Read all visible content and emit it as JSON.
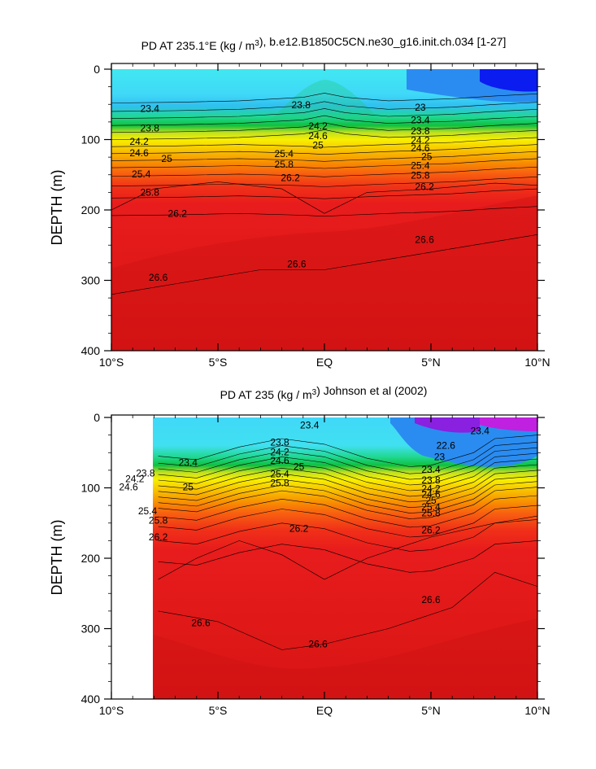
{
  "chart_data": [
    {
      "type": "contour",
      "title": "PD AT 235.1°E (kg / m³), b.e12.B1850C5CN.ne30_g16.init.ch.034 [1-27]",
      "ylabel": "DEPTH (m)",
      "x_ticks": [
        "10°S",
        "5°S",
        "EQ",
        "5°N",
        "10°N"
      ],
      "y_ticks": [
        "0",
        "100",
        "200",
        "300",
        "400"
      ],
      "xlim": [
        -10,
        10
      ],
      "ylim": [
        400,
        0
      ],
      "contour_labels": [
        {
          "x": -8.2,
          "y": 57,
          "v": "23.4"
        },
        {
          "x": -1.1,
          "y": 52,
          "v": "23.8"
        },
        {
          "x": 4.5,
          "y": 55,
          "v": "23"
        },
        {
          "x": -8.2,
          "y": 85,
          "v": "23.8"
        },
        {
          "x": 4.5,
          "y": 73,
          "v": "23.4"
        },
        {
          "x": -0.3,
          "y": 82,
          "v": "24.2"
        },
        {
          "x": 4.5,
          "y": 89,
          "v": "23.8"
        },
        {
          "x": -8.7,
          "y": 104,
          "v": "24.2"
        },
        {
          "x": -0.3,
          "y": 96,
          "v": "24.6"
        },
        {
          "x": 4.5,
          "y": 102,
          "v": "24.2"
        },
        {
          "x": -8.7,
          "y": 120,
          "v": "24.6"
        },
        {
          "x": -0.3,
          "y": 109,
          "v": "25"
        },
        {
          "x": 4.5,
          "y": 113,
          "v": "24.6"
        },
        {
          "x": -7.4,
          "y": 128,
          "v": "25"
        },
        {
          "x": -1.9,
          "y": 121,
          "v": "25.4"
        },
        {
          "x": 4.8,
          "y": 125,
          "v": "25"
        },
        {
          "x": -1.9,
          "y": 136,
          "v": "25.8"
        },
        {
          "x": 4.5,
          "y": 138,
          "v": "25.4"
        },
        {
          "x": -8.6,
          "y": 150,
          "v": "25.4"
        },
        {
          "x": 4.5,
          "y": 152,
          "v": "25.8"
        },
        {
          "x": -1.6,
          "y": 155,
          "v": "26.2"
        },
        {
          "x": 4.7,
          "y": 168,
          "v": "26.2"
        },
        {
          "x": -8.2,
          "y": 176,
          "v": "25.8"
        },
        {
          "x": -6.9,
          "y": 206,
          "v": "26.2"
        },
        {
          "x": 4.7,
          "y": 243,
          "v": "26.6"
        },
        {
          "x": -1.3,
          "y": 278,
          "v": "26.6"
        },
        {
          "x": -7.8,
          "y": 297,
          "v": "26.6"
        }
      ]
    },
    {
      "type": "contour",
      "title": "PD AT 235 (kg / m³) Johnson et al (2002)",
      "ylabel": "DEPTH (m)",
      "x_ticks": [
        "10°S",
        "5°S",
        "EQ",
        "5°N",
        "10°N"
      ],
      "y_ticks": [
        "0",
        "100",
        "200",
        "300",
        "400"
      ],
      "xlim": [
        -10,
        10
      ],
      "ylim": [
        400,
        0
      ],
      "contour_labels": [
        {
          "x": -0.7,
          "y": 12,
          "v": "23.4"
        },
        {
          "x": -2.1,
          "y": 36,
          "v": "23.8"
        },
        {
          "x": 7.3,
          "y": 20,
          "v": "23.4"
        },
        {
          "x": 5.7,
          "y": 41,
          "v": "22.6"
        },
        {
          "x": -2.1,
          "y": 50,
          "v": "24.2"
        },
        {
          "x": 5.4,
          "y": 57,
          "v": "23"
        },
        {
          "x": -6.4,
          "y": 65,
          "v": "23.4"
        },
        {
          "x": -2.1,
          "y": 62,
          "v": "24.6"
        },
        {
          "x": -1.2,
          "y": 71,
          "v": "25"
        },
        {
          "x": -8.4,
          "y": 80,
          "v": "23.8"
        },
        {
          "x": -2.1,
          "y": 81,
          "v": "25.4"
        },
        {
          "x": 5.0,
          "y": 75,
          "v": "23.4"
        },
        {
          "x": -8.9,
          "y": 88,
          "v": "24.2"
        },
        {
          "x": -2.1,
          "y": 94,
          "v": "25.8"
        },
        {
          "x": 5.0,
          "y": 90,
          "v": "23.8"
        },
        {
          "x": -9.2,
          "y": 100,
          "v": "24.6"
        },
        {
          "x": -6.4,
          "y": 100,
          "v": "25"
        },
        {
          "x": 5.0,
          "y": 102,
          "v": "24.2"
        },
        {
          "x": 5.0,
          "y": 110,
          "v": "24.6"
        },
        {
          "x": 5.0,
          "y": 119,
          "v": "25"
        },
        {
          "x": 5.0,
          "y": 128,
          "v": "25.4"
        },
        {
          "x": 5.0,
          "y": 137,
          "v": "25.8"
        },
        {
          "x": -8.3,
          "y": 134,
          "v": "25.4"
        },
        {
          "x": -7.8,
          "y": 147,
          "v": "25.8"
        },
        {
          "x": -1.2,
          "y": 159,
          "v": "26.2"
        },
        {
          "x": 5.0,
          "y": 161,
          "v": "26.2"
        },
        {
          "x": -7.8,
          "y": 171,
          "v": "26.2"
        },
        {
          "x": 5.0,
          "y": 260,
          "v": "26.6"
        },
        {
          "x": -5.8,
          "y": 293,
          "v": "26.6"
        },
        {
          "x": -0.3,
          "y": 323,
          "v": "26.6"
        }
      ]
    }
  ]
}
